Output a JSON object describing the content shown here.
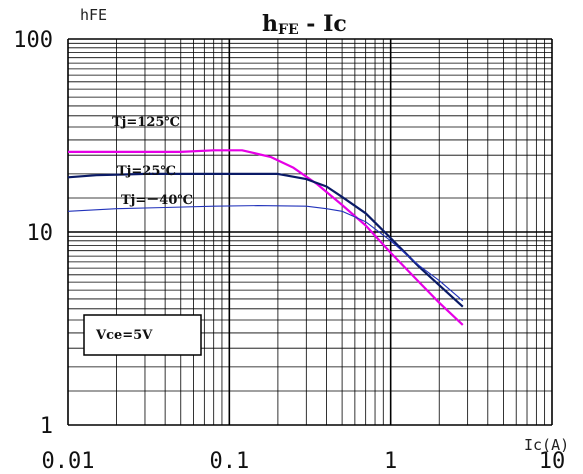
{
  "chart_data": {
    "type": "line",
    "title_main": "h",
    "title_sub": "FE",
    "title_rest": " - Ic",
    "ylabel": "hFE",
    "xlabel": "Ic(A)",
    "x_scale": "log",
    "y_scale": "log",
    "xlim": [
      0.01,
      10
    ],
    "ylim": [
      1,
      100
    ],
    "x_tick_labels": [
      "0.01",
      "0.1",
      "1",
      "10"
    ],
    "y_tick_labels": [
      "100",
      "10",
      "1"
    ],
    "grid": true,
    "condition_label": "Vce=5V",
    "colors": {
      "t125": "#e600e6",
      "t25": "#0a1a66",
      "tm40": "#2233bb",
      "grid": "#000000"
    },
    "series": [
      {
        "name": "Tj=125℃",
        "color_key": "t125",
        "stroke": 2.2,
        "x": [
          0.01,
          0.02,
          0.05,
          0.08,
          0.12,
          0.18,
          0.25,
          0.35,
          0.5,
          0.7,
          1,
          1.5,
          2,
          2.8
        ],
        "y": [
          26,
          26,
          26,
          26.5,
          26.5,
          24.5,
          21.5,
          17.7,
          13.8,
          10.8,
          7.8,
          5.5,
          4.3,
          3.3
        ]
      },
      {
        "name": "Tj=25℃",
        "color_key": "t25",
        "stroke": 2.2,
        "x": [
          0.01,
          0.015,
          0.03,
          0.06,
          0.1,
          0.2,
          0.3,
          0.4,
          0.5,
          0.7,
          1,
          1.5,
          2,
          2.8
        ],
        "y": [
          19.2,
          19.7,
          20,
          20,
          20,
          20,
          18.8,
          17.2,
          15.2,
          12.5,
          9.3,
          6.6,
          5.3,
          4.1
        ]
      },
      {
        "name": "Tj=－40℃",
        "color_key": "tm40",
        "stroke": 1.1,
        "x": [
          0.01,
          0.02,
          0.04,
          0.08,
          0.15,
          0.3,
          0.4,
          0.5,
          0.7,
          1,
          1.5,
          2,
          2.8
        ],
        "y": [
          12.8,
          13.2,
          13.4,
          13.6,
          13.7,
          13.6,
          13.2,
          12.8,
          11.3,
          9,
          6.7,
          5.6,
          4.4
        ]
      }
    ]
  }
}
